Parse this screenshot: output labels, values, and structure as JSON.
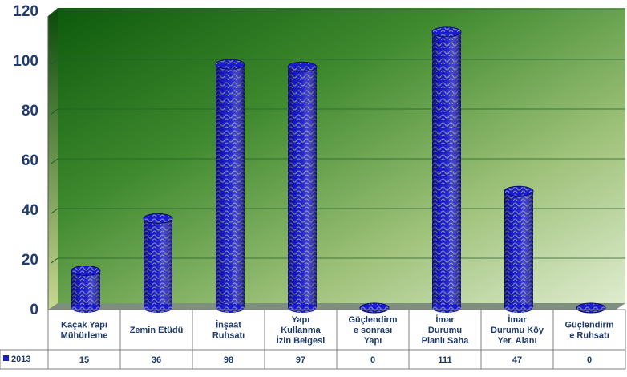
{
  "chart_data": {
    "type": "bar",
    "title": "",
    "xlabel": "",
    "ylabel": "",
    "ylim": [
      0,
      120
    ],
    "y_ticks": [
      0,
      20,
      40,
      60,
      80,
      100,
      120
    ],
    "grid": true,
    "legend_placement": "bottom-left (data table)",
    "categories": [
      [
        "Kaçak Yapı",
        "Mühürleme"
      ],
      [
        "Zemin Etüdü"
      ],
      [
        "İnşaat",
        "Ruhsatı"
      ],
      [
        "Yapı",
        "Kullanma",
        "İzin Belgesi"
      ],
      [
        "Güçlendirm",
        "e sonrası",
        "Yapı"
      ],
      [
        "İmar",
        "Durumu",
        "Planlı Saha"
      ],
      [
        "İmar",
        "Durumu Köy",
        "Yer. Alanı"
      ],
      [
        "Güçlendirm",
        "e Ruhsatı"
      ]
    ],
    "series": [
      {
        "name": "2013",
        "color": "#1a1ad0",
        "values": [
          15,
          36,
          98,
          97,
          0,
          111,
          47,
          0
        ]
      }
    ]
  }
}
